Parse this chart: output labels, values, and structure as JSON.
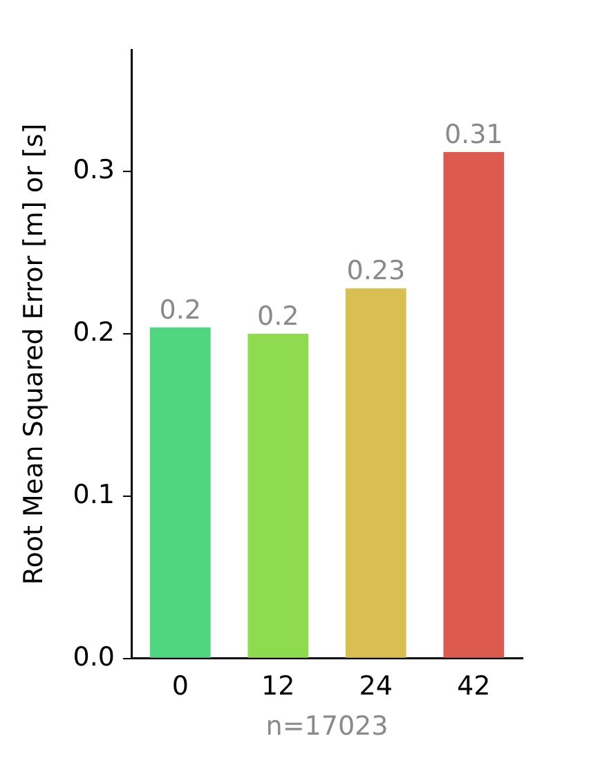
{
  "chart_data": {
    "type": "bar",
    "ylabel": "Root Mean Squared Error [m] or [s]",
    "xlabel": "n=17023",
    "categories": [
      "0",
      "12",
      "24",
      "42"
    ],
    "values": [
      0.204,
      0.2,
      0.228,
      0.312
    ],
    "colors": [
      "#4fd67f",
      "#8fdb50",
      "#d9bf52",
      "#dc5a4f"
    ],
    "value_labels": [
      "0.2",
      "0.2",
      "0.23",
      "0.31"
    ],
    "ylim": [
      0,
      0.375
    ],
    "yticks": [
      {
        "value": 0,
        "label": "0.0"
      },
      0.1,
      0.2,
      0.3
    ],
    "grid": false,
    "legend": false
  }
}
